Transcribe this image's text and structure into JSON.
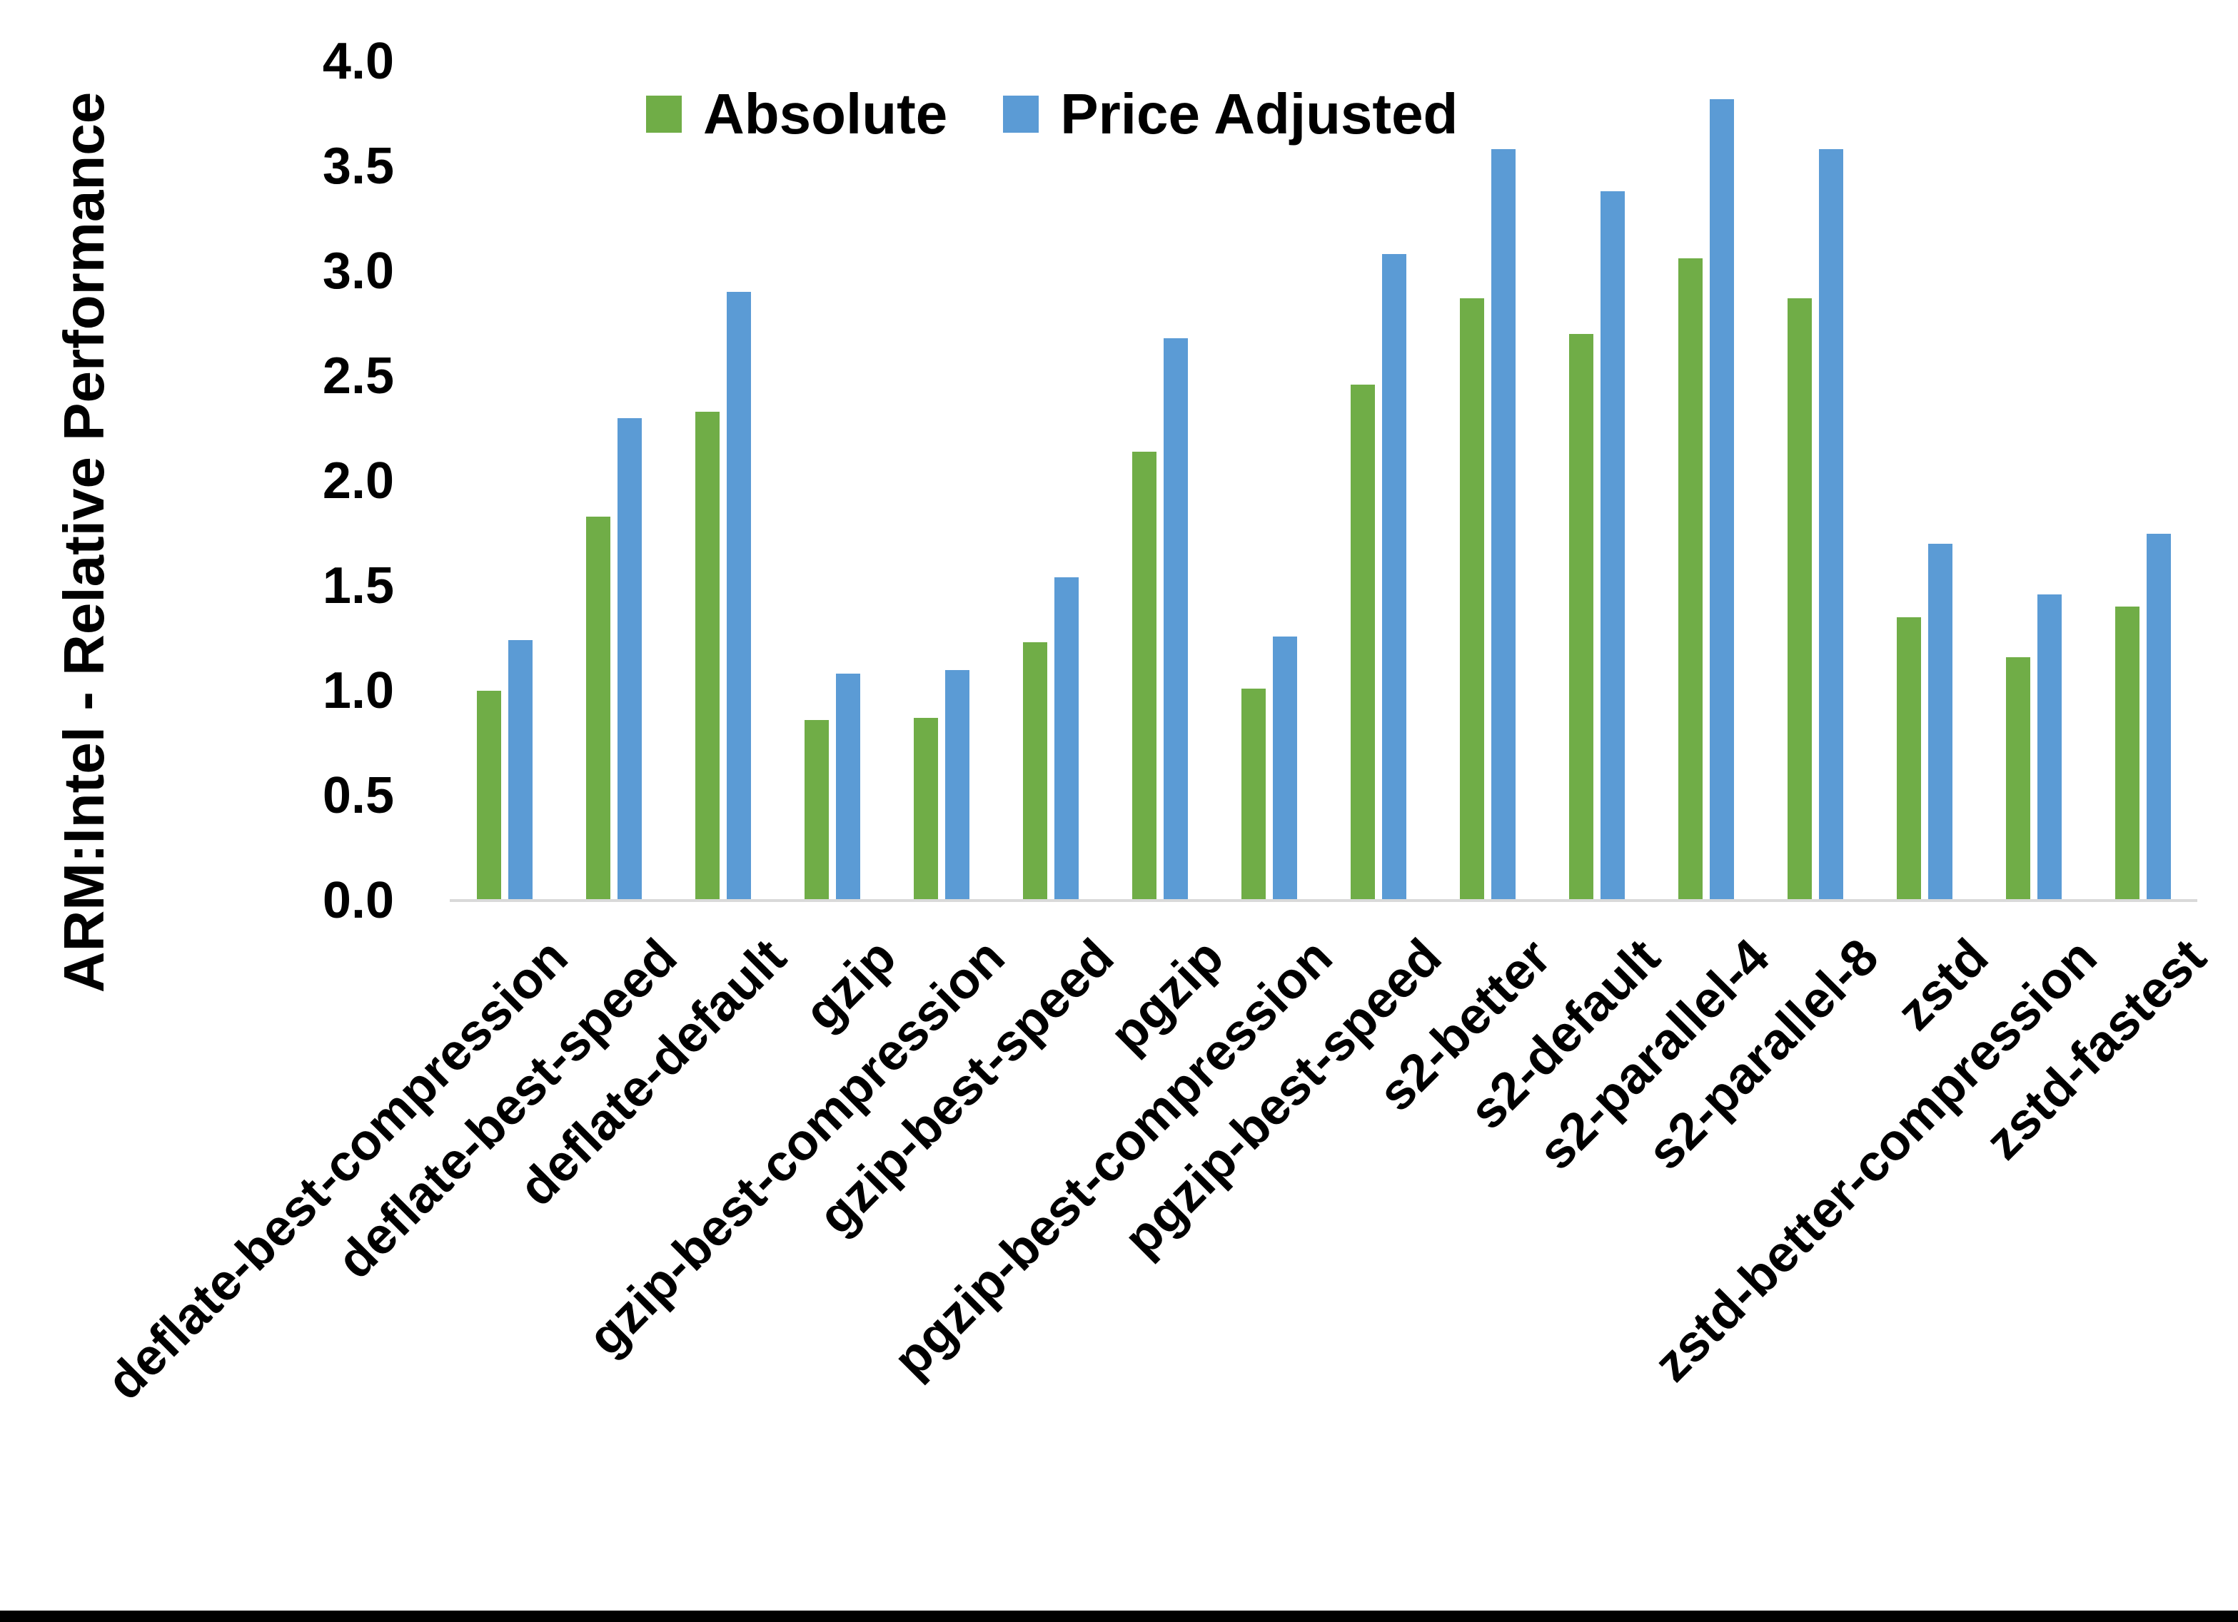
{
  "colors": {
    "absolute_green": "#70AD47",
    "price_adjusted_blue": "#5B9BD5",
    "axis_line_gray": "#D9D9D9",
    "text_black": "#000000",
    "bottom_border_black": "#000000"
  },
  "chart_data": {
    "type": "bar",
    "title": "",
    "xlabel": "",
    "ylabel": "ARM:Intel - Relative Performance",
    "ylim": [
      0.0,
      4.0
    ],
    "ytick_step": 0.5,
    "ytick_labels": [
      "4.0",
      "3.5",
      "3.0",
      "2.5",
      "2.0",
      "1.5",
      "1.0",
      "0.5",
      "0.0"
    ],
    "grid": false,
    "legend_position": "top-center",
    "xtick_rotation_deg": 45,
    "categories": [
      "deflate-best-compression",
      "deflate-best-speed",
      "deflate-default",
      "gzip",
      "gzip-best-compression",
      "gzip-best-speed",
      "pgzip",
      "pgzip-best-compression",
      "pgzip-best-speed",
      "s2-better",
      "s2-default",
      "s2-parallel-4",
      "s2-parallel-8",
      "zstd",
      "zstd-better-compression",
      "zstd-fastest"
    ],
    "series": [
      {
        "name": "Absolute",
        "color": "#70AD47",
        "values": [
          1.0,
          1.83,
          2.33,
          0.86,
          0.87,
          1.23,
          2.14,
          1.01,
          2.46,
          2.87,
          2.7,
          3.06,
          2.87,
          1.35,
          1.16,
          1.4
        ]
      },
      {
        "name": "Price Adjusted",
        "color": "#5B9BD5",
        "values": [
          1.24,
          2.3,
          2.9,
          1.08,
          1.1,
          1.54,
          2.68,
          1.26,
          3.08,
          3.58,
          3.38,
          3.82,
          3.58,
          1.7,
          1.46,
          1.75
        ]
      }
    ]
  }
}
